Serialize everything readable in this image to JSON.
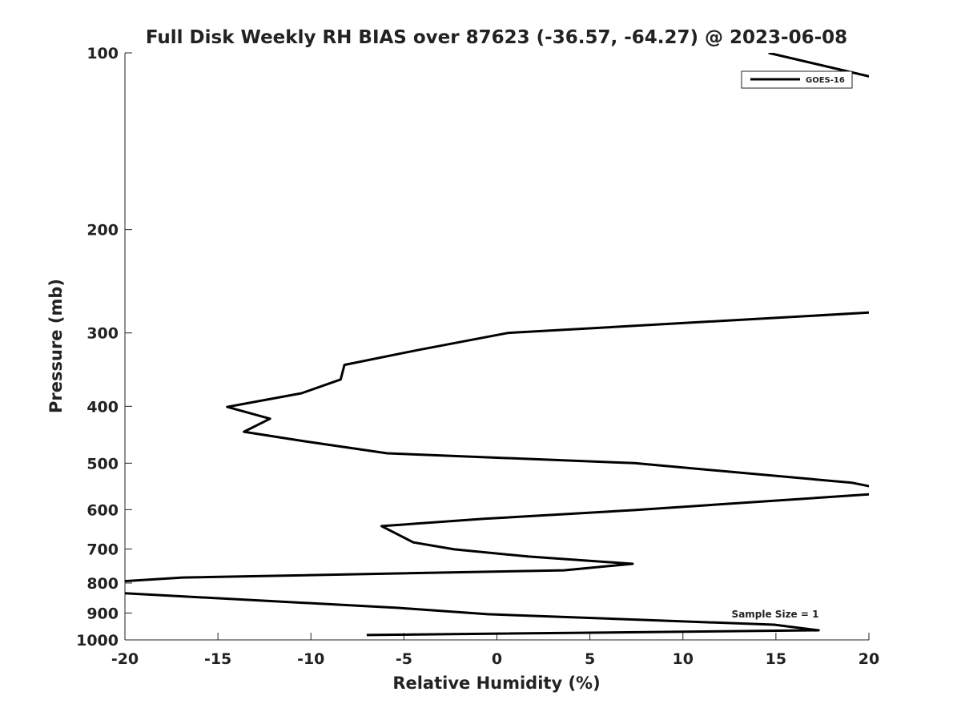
{
  "chart_data": {
    "type": "line",
    "title": "Full Disk Weekly RH BIAS over 87623 (-36.57, -64.27) @ 2023-06-08",
    "xlabel": "Relative Humidity (%)",
    "ylabel": "Pressure (mb)",
    "xlim": [
      -20,
      20
    ],
    "ylim": [
      100,
      1000
    ],
    "yscale": "log",
    "yreverse": true,
    "xticks": [
      -20,
      -15,
      -10,
      -5,
      0,
      5,
      10,
      15,
      20
    ],
    "xtick_labels": [
      "-20",
      "-15",
      "-10",
      "-5",
      "0",
      "5",
      "10",
      "15",
      "20"
    ],
    "yticks": [
      100,
      200,
      300,
      400,
      500,
      600,
      700,
      800,
      900,
      1000
    ],
    "ytick_labels": [
      "100",
      "200",
      "300",
      "400",
      "500",
      "600",
      "700",
      "800",
      "900",
      "1000"
    ],
    "grid": false,
    "legend_position": "top-right",
    "annotation": "Sample Size = 1",
    "series": [
      {
        "name": "GOES-16",
        "color": "#000000",
        "points": [
          [
            14.6,
            100
          ],
          [
            30,
            130
          ],
          [
            30,
            250
          ],
          [
            20.0,
            277
          ],
          [
            0.6,
            300
          ],
          [
            -4.3,
            321
          ],
          [
            -8.2,
            340
          ],
          [
            -8.4,
            360
          ],
          [
            -10.5,
            380
          ],
          [
            -14.5,
            401
          ],
          [
            -12.2,
            420
          ],
          [
            -13.6,
            442
          ],
          [
            -10.3,
            459
          ],
          [
            -5.9,
            481
          ],
          [
            7.4,
            500
          ],
          [
            19.1,
            540
          ],
          [
            21,
            555
          ],
          [
            20.0,
            565
          ],
          [
            7.4,
            601
          ],
          [
            -0.7,
            622
          ],
          [
            -6.2,
            640
          ],
          [
            -4.5,
            682
          ],
          [
            -2.3,
            701
          ],
          [
            1.7,
            721
          ],
          [
            7.3,
            742
          ],
          [
            3.6,
            761
          ],
          [
            -16.9,
            783
          ],
          [
            -23,
            805
          ],
          [
            -20.0,
            833
          ],
          [
            -5.3,
            882
          ],
          [
            -0.5,
            904
          ],
          [
            14.9,
            942
          ],
          [
            17.3,
            963
          ],
          [
            -7.0,
            981
          ]
        ]
      }
    ]
  }
}
